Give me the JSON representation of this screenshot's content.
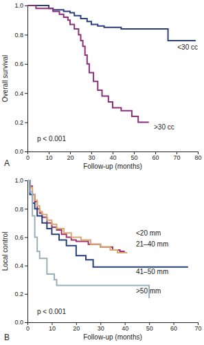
{
  "chart_data": [
    {
      "type": "step",
      "y_label": "Overall survival",
      "x_label": "Follow-up (months)",
      "annotations": [
        "A",
        "p < 0.001"
      ],
      "xlim": [
        0,
        80
      ],
      "xticks": [
        0,
        10,
        20,
        30,
        40,
        50,
        60,
        70,
        80
      ],
      "ylim": [
        0,
        1
      ],
      "yticks": [
        {
          "value": 0,
          "label": "0.0"
        },
        0.2,
        0.4,
        0.6,
        0.8,
        {
          "value": 1,
          "label": "1.0"
        }
      ],
      "grid": false,
      "series": [
        {
          "name": "<30 cc",
          "color": "#2b3f7f",
          "x": [
            0,
            10,
            12,
            17,
            20,
            22,
            25,
            28,
            30,
            33,
            36,
            40,
            44,
            66,
            79
          ],
          "values": [
            1.0,
            0.98,
            0.97,
            0.96,
            0.95,
            0.93,
            0.91,
            0.89,
            0.87,
            0.86,
            0.85,
            0.85,
            0.84,
            0.76,
            0.76
          ]
        },
        {
          "name": ">30 cc",
          "color": "#8a2f7a",
          "x": [
            0,
            4,
            12,
            15,
            17,
            19,
            20,
            22,
            24,
            25,
            26,
            27,
            28,
            29,
            31,
            33,
            35,
            38,
            40,
            44,
            49,
            52,
            57
          ],
          "values": [
            1.0,
            0.98,
            0.96,
            0.94,
            0.92,
            0.9,
            0.87,
            0.84,
            0.8,
            0.76,
            0.72,
            0.66,
            0.6,
            0.54,
            0.48,
            0.42,
            0.38,
            0.34,
            0.3,
            0.28,
            0.24,
            0.2,
            0.2
          ]
        }
      ]
    },
    {
      "type": "step",
      "y_label": "Local control",
      "x_label": "Follow-up (months)",
      "annotations": [
        "B",
        "p < 0.001"
      ],
      "xlim": [
        0,
        70
      ],
      "xticks": [
        0,
        10,
        20,
        30,
        40,
        50,
        60,
        70
      ],
      "ylim": [
        0,
        1
      ],
      "yticks": [
        {
          "value": 0,
          "label": "0.0"
        },
        0.2,
        0.4,
        0.6,
        0.8,
        {
          "value": 1,
          "label": "1.0"
        }
      ],
      "grid": false,
      "series": [
        {
          "name": "<20 mm",
          "color": "#a0306e",
          "x": [
            0,
            1,
            2,
            3,
            4,
            5,
            6,
            8,
            10,
            12,
            14,
            16,
            18,
            20,
            25,
            30,
            35,
            38,
            40
          ],
          "values": [
            1.0,
            0.96,
            0.9,
            0.85,
            0.8,
            0.77,
            0.74,
            0.7,
            0.67,
            0.65,
            0.62,
            0.6,
            0.58,
            0.57,
            0.55,
            0.53,
            0.51,
            0.5,
            0.5
          ]
        },
        {
          "name": "21–40 mm",
          "color": "#d9a86c",
          "x": [
            0,
            1,
            2,
            3,
            4,
            5,
            6,
            8,
            10,
            12,
            15,
            18,
            22,
            26,
            30,
            34,
            37,
            41
          ],
          "values": [
            1.0,
            0.95,
            0.9,
            0.86,
            0.82,
            0.78,
            0.76,
            0.72,
            0.69,
            0.66,
            0.63,
            0.6,
            0.58,
            0.55,
            0.53,
            0.51,
            0.49,
            0.49
          ]
        },
        {
          "name": "41–50 mm",
          "color": "#26407c",
          "x": [
            0,
            1,
            2,
            3,
            4,
            6,
            8,
            10,
            13,
            16,
            20,
            24,
            27,
            66
          ],
          "values": [
            1.0,
            0.9,
            0.84,
            0.8,
            0.75,
            0.7,
            0.66,
            0.62,
            0.58,
            0.54,
            0.47,
            0.44,
            0.39,
            0.39
          ]
        },
        {
          "name": ">50 mm",
          "color": "#9aafba",
          "x": [
            0,
            1,
            2,
            3,
            4,
            5,
            8,
            11,
            12,
            50
          ],
          "values": [
            1.0,
            0.92,
            0.75,
            0.6,
            0.5,
            0.45,
            0.34,
            0.3,
            0.26,
            0.17
          ]
        }
      ]
    }
  ]
}
